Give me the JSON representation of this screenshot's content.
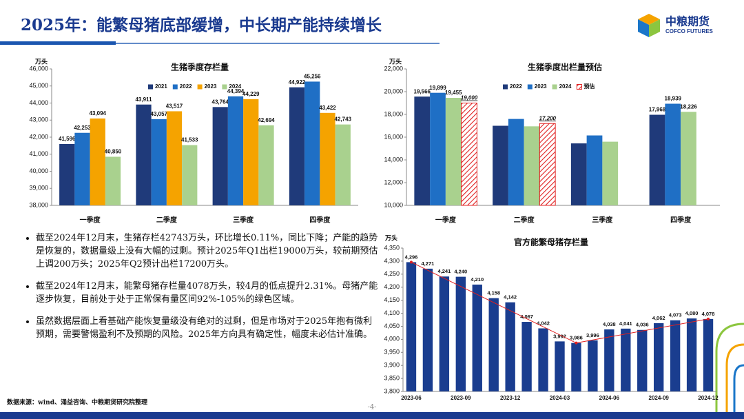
{
  "header": {
    "title": "2025年：能繁母猪底部缓增，中长期产能持续增长"
  },
  "logo": {
    "name": "中粮期货",
    "name_en": "COFCO FUTURES"
  },
  "chart_data": [
    {
      "type": "bar",
      "title": "生猪季度存栏量",
      "y_label": "万头",
      "categories": [
        "一季度",
        "二季度",
        "三季度",
        "四季度"
      ],
      "series": [
        {
          "name": "2021",
          "color": "#1f3a7a",
          "values": [
            41596,
            43911,
            43764,
            44922
          ],
          "value_labels": [
            "41,596",
            "43,911",
            "43,764",
            "44,922"
          ]
        },
        {
          "name": "2022",
          "color": "#1f6fc5",
          "values": [
            42253,
            43057,
            44394,
            45256
          ],
          "value_labels": [
            "42,253",
            "43,057",
            "44,394",
            "45,256"
          ]
        },
        {
          "name": "2023",
          "color": "#f5a300",
          "values": [
            43094,
            43517,
            44229,
            43422
          ],
          "value_labels": [
            "43,094",
            "43,517",
            "44,229",
            "43,422"
          ]
        },
        {
          "name": "2024",
          "color": "#a9d18e",
          "values": [
            40850,
            41533,
            42694,
            42743
          ],
          "value_labels": [
            "40,850",
            "41,533",
            "42,694",
            "42,743"
          ]
        }
      ],
      "ylim": [
        38000,
        46000
      ],
      "yticks": [
        {
          "value": 38000,
          "label": "38,000"
        },
        {
          "value": 39000,
          "label": "39,000"
        },
        {
          "value": 40000,
          "label": "40,000"
        },
        {
          "value": 41000,
          "label": "41,000"
        },
        {
          "value": 42000,
          "label": "42,000"
        },
        {
          "value": 43000,
          "label": "43,000"
        },
        {
          "value": 44000,
          "label": "44,000"
        },
        {
          "value": 45000,
          "label": "45,000"
        },
        {
          "value": 46000,
          "label": "46,000"
        }
      ],
      "grid": false,
      "legend": "top"
    },
    {
      "type": "bar",
      "title": "生猪季度出栏量预估",
      "y_label": "万头",
      "categories": [
        "一季度",
        "二季度",
        "三季度",
        "四季度"
      ],
      "series": [
        {
          "name": "2022",
          "color": "#1f3a7a",
          "values": [
            19566,
            17000,
            15450,
            17968
          ],
          "value_labels": [
            "19,566",
            null,
            null,
            "17,968"
          ]
        },
        {
          "name": "2023",
          "color": "#1f6fc5",
          "values": [
            19899,
            17600,
            16150,
            18939
          ],
          "value_labels": [
            "19,899",
            null,
            null,
            "18,939"
          ]
        },
        {
          "name": "2024",
          "color": "#a9d18e",
          "values": [
            19455,
            16950,
            15600,
            18226
          ],
          "value_labels": [
            "19,455",
            null,
            null,
            "18,226"
          ]
        },
        {
          "name": "预估",
          "color": "#e02020",
          "hatch": true,
          "values": [
            19000,
            17200,
            null,
            null
          ],
          "value_labels": [
            "19,000",
            "17,200",
            null,
            null
          ]
        }
      ],
      "ylim": [
        10000,
        22000
      ],
      "yticks": [
        {
          "value": 10000,
          "label": "10,000"
        },
        {
          "value": 12000,
          "label": "12,000"
        },
        {
          "value": 14000,
          "label": "14,000"
        },
        {
          "value": 16000,
          "label": "16,000"
        },
        {
          "value": 18000,
          "label": "18,000"
        },
        {
          "value": 20000,
          "label": "20,000"
        },
        {
          "value": 22000,
          "label": "22,000"
        }
      ],
      "grid": false,
      "legend": "top"
    },
    {
      "type": "bar",
      "title": "官方能繁母猪存栏量",
      "y_label": "万头",
      "categories": [
        "2023-06",
        null,
        null,
        "2023-09",
        null,
        null,
        "2023-12",
        null,
        null,
        "2024-03",
        null,
        null,
        "2024-06",
        null,
        null,
        "2024-09",
        null,
        null,
        "2024-12"
      ],
      "series": [
        {
          "name": null,
          "color": "#1a3d8f",
          "values": [
            4296,
            4271,
            4241,
            4240,
            4210,
            4158,
            4142,
            4067,
            4042,
            3992,
            3986,
            3996,
            4038,
            4041,
            4036,
            4062,
            4073,
            4080,
            4078
          ],
          "value_labels": [
            "4,296",
            "4,271",
            "4,241",
            "4,240",
            "4,210",
            "4,158",
            "4,142",
            "4,067",
            "4,042",
            "3,992",
            "3,986",
            "3,996",
            "4,038",
            "4,041",
            "4,036",
            "4,062",
            "4,073",
            "4,080",
            "4,078"
          ]
        }
      ],
      "ylim": [
        3800,
        4350
      ],
      "yticks": [
        {
          "value": 3800,
          "label": "3,800"
        },
        {
          "value": 3850,
          "label": "3,850"
        },
        {
          "value": 3900,
          "label": "3,900"
        },
        {
          "value": 3950,
          "label": "3,950"
        },
        {
          "value": 4000,
          "label": "4,000"
        },
        {
          "value": 4050,
          "label": "4,050"
        },
        {
          "value": 4100,
          "label": "4,100"
        },
        {
          "value": 4150,
          "label": "4,150"
        },
        {
          "value": 4200,
          "label": "4,200"
        },
        {
          "value": 4250,
          "label": "4,250"
        },
        {
          "value": 4300,
          "label": "4,300"
        },
        {
          "value": 4350,
          "label": "4,350"
        }
      ],
      "grid": false,
      "legend": "none",
      "trend_color": "#e02020"
    }
  ],
  "bullets": [
    "截至2024年12月末，生猪存栏42743万头，环比增长0.11%，同比下降；产能的趋势是恢复的，数据量级上没有大幅的过剩。预计2025年Q1出栏19000万头，较前期预估上调200万头；2025年Q2预计出栏17200万头。",
    "截至2024年12月末，能繁母猪存栏量4078万头，较4月的低点提升2.31%。母猪产能逐步恢复，目前处于处于正常保有量区间92%-105%的绿色区域。",
    "虽然数据层面上看基础产能恢复量级没有绝对的过剩，但是市场对于2025年抱有微利预期，需要警惕盈利不及预期的风险。2025年方向具有确定性，幅度未必估计准确。"
  ],
  "source": "数据来源：wind、涌益咨询、中粮期货研究院整理",
  "page_number": "-4-"
}
